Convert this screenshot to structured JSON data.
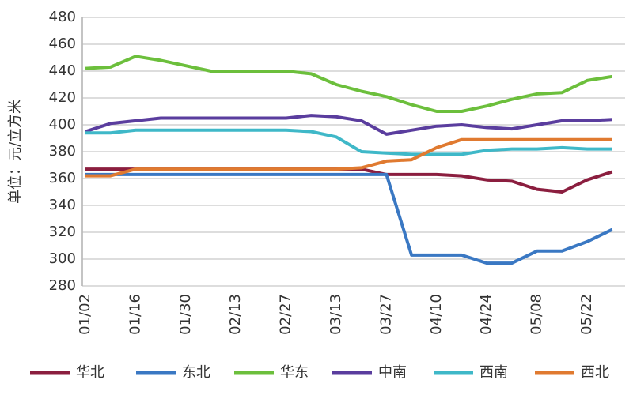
{
  "chart_data": {
    "type": "line",
    "y_label": "单位：元/立方米",
    "categories": [
      "01/02",
      null,
      "01/16",
      null,
      "01/30",
      null,
      "02/13",
      null,
      "02/27",
      null,
      "03/13",
      null,
      "03/27",
      null,
      "04/10",
      null,
      "04/24",
      null,
      "05/08",
      null,
      "05/22",
      null
    ],
    "series": [
      {
        "name": "华北",
        "color": "#8b1e3f",
        "values": [
          367,
          367,
          367,
          367,
          367,
          367,
          367,
          367,
          367,
          367,
          367,
          367,
          363,
          363,
          363,
          362,
          359,
          358,
          352,
          350,
          359,
          365
        ]
      },
      {
        "name": "东北",
        "color": "#3a78c3",
        "values": [
          363,
          363,
          363,
          363,
          363,
          363,
          363,
          363,
          363,
          363,
          363,
          363,
          363,
          303,
          303,
          303,
          297,
          297,
          306,
          306,
          313,
          322
        ]
      },
      {
        "name": "华东",
        "color": "#6cbf3c",
        "values": [
          442,
          443,
          451,
          448,
          444,
          440,
          440,
          440,
          440,
          438,
          430,
          425,
          421,
          415,
          410,
          410,
          414,
          419,
          423,
          424,
          433,
          436
        ]
      },
      {
        "name": "中南",
        "color": "#5a3d9e",
        "values": [
          395,
          401,
          403,
          405,
          405,
          405,
          405,
          405,
          405,
          407,
          406,
          403,
          393,
          396,
          399,
          400,
          398,
          397,
          400,
          403,
          403,
          404
        ]
      },
      {
        "name": "西南",
        "color": "#3fb8c8",
        "values": [
          394,
          394,
          396,
          396,
          396,
          396,
          396,
          396,
          396,
          395,
          391,
          380,
          379,
          378,
          378,
          378,
          381,
          382,
          382,
          383,
          382,
          382
        ]
      },
      {
        "name": "西北",
        "color": "#e07a30",
        "values": [
          362,
          362,
          367,
          367,
          367,
          367,
          367,
          367,
          367,
          367,
          367,
          368,
          373,
          374,
          383,
          389,
          389,
          389,
          389,
          389,
          389,
          389
        ]
      }
    ],
    "ylim": [
      280,
      480
    ],
    "yticks": [
      280,
      300,
      320,
      340,
      360,
      380,
      400,
      420,
      440,
      460,
      480
    ],
    "grid": true
  }
}
